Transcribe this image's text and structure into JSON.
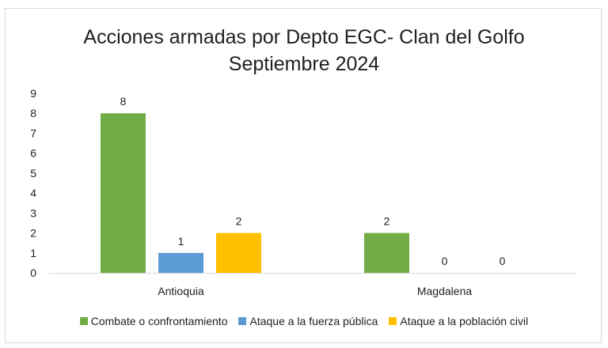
{
  "chart_data": {
    "type": "bar",
    "title": [
      "Acciones armadas por Depto EGC- Clan del Golfo",
      "Septiembre 2024"
    ],
    "categories": [
      "Antioquia",
      "Magdalena"
    ],
    "series": [
      {
        "name": "Combate o confrontamiento",
        "values": [
          8,
          2
        ],
        "color": "#70AD47"
      },
      {
        "name": "Ataque a la fuerza pública",
        "values": [
          1,
          0
        ],
        "color": "#5B9BD5"
      },
      {
        "name": "Ataque a la población civil",
        "values": [
          2,
          0
        ],
        "color": "#FFC000"
      }
    ],
    "data_labels": [
      [
        "8",
        "2"
      ],
      [
        "1",
        "0"
      ],
      [
        "2",
        "0"
      ]
    ],
    "ylim": [
      0,
      9
    ],
    "yticks": [
      "0",
      "1",
      "2",
      "3",
      "4",
      "5",
      "6",
      "7",
      "8",
      "9"
    ],
    "grid": false,
    "legend": "bottom"
  }
}
